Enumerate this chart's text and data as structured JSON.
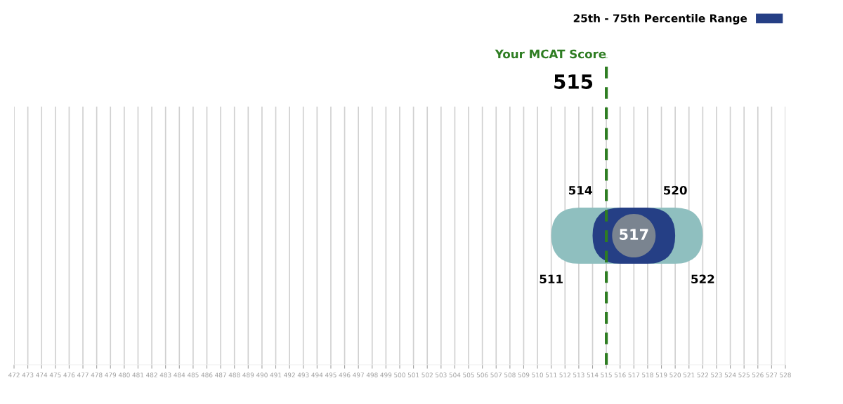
{
  "chart_data": {
    "type": "bar",
    "orientation": "horizontal",
    "categories": [
      null
    ],
    "series": [
      {
        "color": "#8fbfbf",
        "values": [
          11
        ],
        "base": [
          511
        ]
      },
      {
        "name": "25th - 75th Percentile Range",
        "color": "#253f85",
        "values": [
          6
        ],
        "base": [
          514
        ]
      },
      {
        "type": "scatter",
        "color": "#7a8490",
        "values": [
          517
        ],
        "value_labels": [
          "517"
        ]
      }
    ],
    "xlim": [
      472,
      528
    ],
    "xticks": [
      472,
      473,
      474,
      475,
      476,
      477,
      478,
      479,
      480,
      481,
      482,
      483,
      484,
      485,
      486,
      487,
      488,
      489,
      490,
      491,
      492,
      493,
      494,
      495,
      496,
      497,
      498,
      499,
      500,
      501,
      502,
      503,
      504,
      505,
      506,
      507,
      508,
      509,
      510,
      511,
      512,
      513,
      514,
      515,
      516,
      517,
      518,
      519,
      520,
      521,
      522,
      523,
      524,
      525,
      526,
      527,
      528
    ],
    "grid": "x",
    "legend": "top right",
    "ref_lines": [
      {
        "axis": "x",
        "value": 515,
        "label": "Your MCAT Score",
        "color": "#2e7d22",
        "line_style": "dashed"
      }
    ],
    "annotations": [
      {
        "text": "515",
        "x": 515
      },
      "511",
      "522",
      "514",
      "520"
    ]
  }
}
